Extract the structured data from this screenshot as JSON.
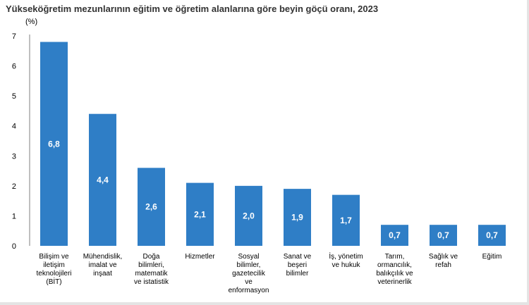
{
  "title": "Yükseköğretim mezunlarının eğitim ve öğretim alanlarına göre beyin göçü oranı, 2023",
  "colors": {
    "bar": "#2f7ec6",
    "axis": "#7f7f7f",
    "value_label": "#ffffff"
  },
  "chart_data": {
    "type": "bar",
    "title": "Yükseköğretim mezunlarının eğitim ve öğretim alanlarına göre beyin göçü oranı, 2023",
    "ylabel": "(%)",
    "xlabel": "",
    "ylim": [
      0,
      7
    ],
    "yticks": [
      "0",
      "1",
      "2",
      "3",
      "4",
      "5",
      "6",
      "7"
    ],
    "grid": false,
    "categories": [
      [
        "Bilişim ve",
        "iletişim",
        "teknolojileri",
        "(BİT)"
      ],
      [
        "Mühendislik,",
        "imalat ve",
        "inşaat"
      ],
      [
        "Doğa",
        "bilimleri,",
        "matematik",
        "ve istatistik"
      ],
      [
        "Hizmetler"
      ],
      [
        "Sosyal",
        "bilimler,",
        "gazetecilik",
        "ve",
        "enformasyon"
      ],
      [
        "Sanat ve",
        "beşeri",
        "bilimler"
      ],
      [
        "İş, yönetim",
        "ve hukuk"
      ],
      [
        "Tarım,",
        "ormancılık,",
        "balıkçılık ve",
        "veterinerlik"
      ],
      [
        "Sağlık ve",
        "refah"
      ],
      [
        "Eğitim"
      ]
    ],
    "values": [
      6.8,
      4.4,
      2.6,
      2.1,
      2.0,
      1.9,
      1.7,
      0.7,
      0.7,
      0.7
    ],
    "value_labels": [
      "6,8",
      "4,4",
      "2,6",
      "2,1",
      "2,0",
      "1,9",
      "1,7",
      "0,7",
      "0,7",
      "0,7"
    ]
  }
}
